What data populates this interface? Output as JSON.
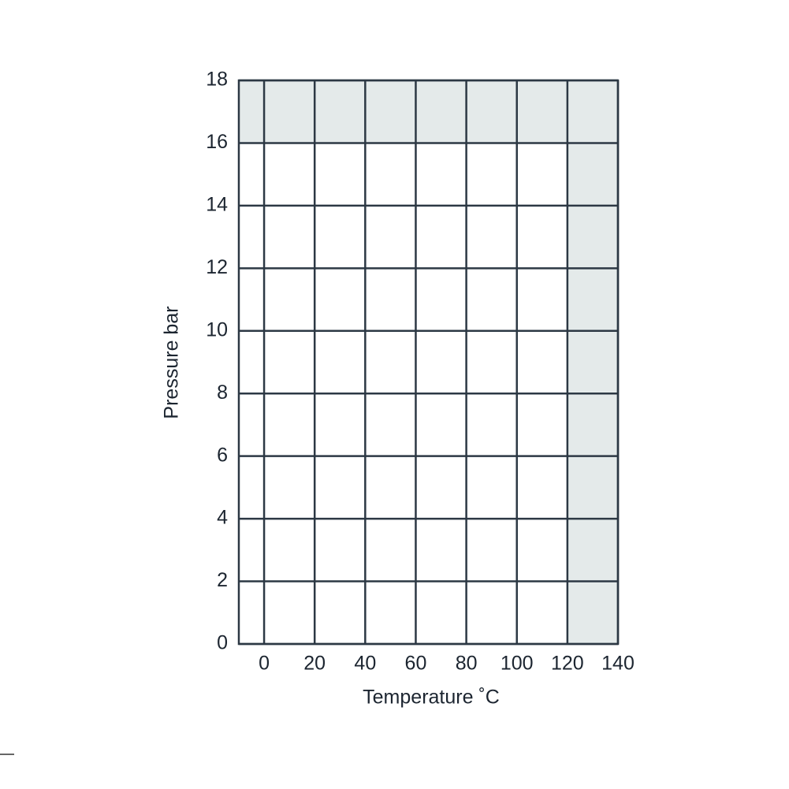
{
  "chart_data": {
    "type": "area",
    "x": [
      -10,
      120,
      120
    ],
    "values": [
      16,
      16,
      0
    ],
    "xlabel": "Temperature ˚C",
    "ylabel": "Pressure bar",
    "xlim": [
      -10,
      140
    ],
    "ylim": [
      0,
      18
    ],
    "xticks": [
      0,
      20,
      40,
      60,
      80,
      100,
      120,
      140
    ],
    "yticks": [
      0,
      2,
      4,
      6,
      8,
      10,
      12,
      14,
      16,
      18
    ],
    "grid": true,
    "color": "#ffffff",
    "background": "#e4eaea"
  }
}
